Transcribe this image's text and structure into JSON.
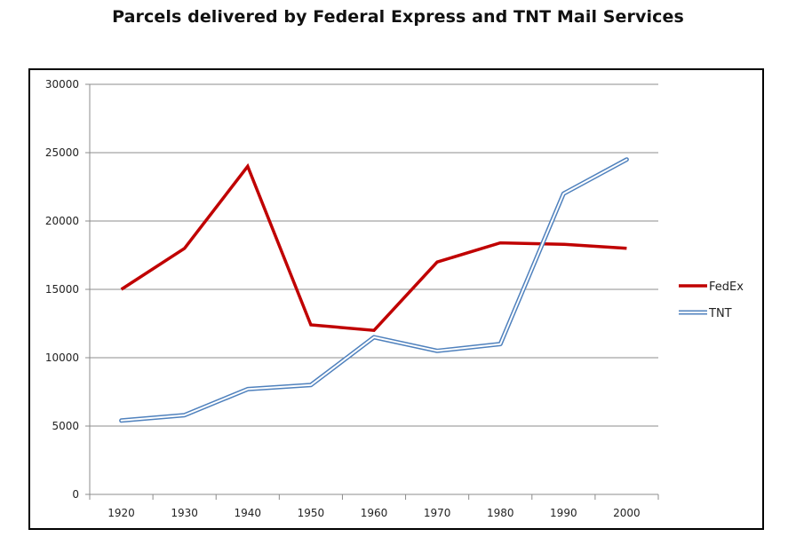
{
  "chart_data": {
    "type": "line",
    "title": "Parcels delivered by Federal Express and TNT Mail Services",
    "xlabel": "",
    "ylabel": "",
    "categories": [
      "1920",
      "1930",
      "1940",
      "1950",
      "1960",
      "1970",
      "1980",
      "1990",
      "2000"
    ],
    "yticks": [
      "0",
      "5000",
      "10000",
      "15000",
      "20000",
      "25000",
      "30000"
    ],
    "ylim": [
      0,
      30000
    ],
    "grid": "horizontal",
    "legend_position": "right",
    "series": [
      {
        "name": "FedEx",
        "color": "#c00000",
        "style": "solid",
        "values": [
          15000,
          18000,
          24000,
          12400,
          12000,
          17000,
          18400,
          18300,
          18000
        ]
      },
      {
        "name": "TNT",
        "color": "#4f81bd",
        "style": "double",
        "values": [
          5400,
          5800,
          7700,
          8000,
          11500,
          10500,
          11000,
          22000,
          24500
        ]
      }
    ]
  }
}
